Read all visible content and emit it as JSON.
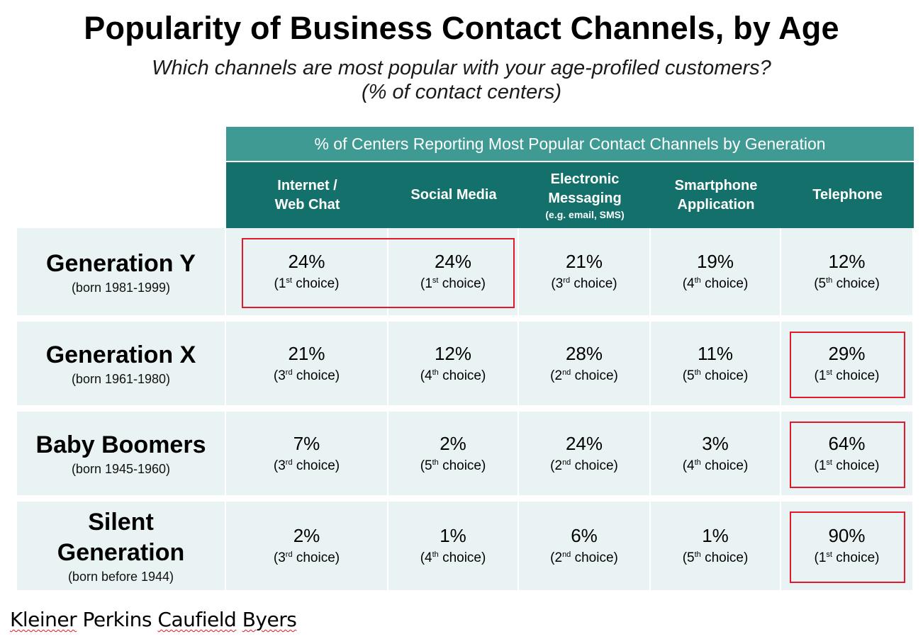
{
  "title": "Popularity of Business Contact Channels, by Age",
  "subtitle_line1": "Which channels are most popular with your age-profiled customers?",
  "subtitle_line2": "(% of contact centers)",
  "source": {
    "part1": "Kleiner",
    "part2": "Perkins",
    "part3": "Caufield",
    "part4": "Byers"
  },
  "chart_data": {
    "type": "table",
    "group_header": "% of Centers Reporting Most Popular Contact Channels by Generation",
    "columns": [
      {
        "line1": "Internet /",
        "line2": "Web Chat",
        "note": ""
      },
      {
        "line1": "Social Media",
        "line2": "",
        "note": ""
      },
      {
        "line1": "Electronic",
        "line2": "Messaging",
        "note": "(e.g. email, SMS)"
      },
      {
        "line1": "Smartphone",
        "line2": "Application",
        "note": ""
      },
      {
        "line1": "Telephone",
        "line2": "",
        "note": ""
      }
    ],
    "rows": [
      {
        "generation_line1": "Generation Y",
        "generation_line2": "",
        "born": "(born 1981-1999)",
        "values": [
          24,
          24,
          21,
          19,
          12
        ],
        "display": [
          "24%",
          "24%",
          "21%",
          "19%",
          "12%"
        ],
        "rank_num": [
          "1",
          "1",
          "3",
          "4",
          "5"
        ],
        "rank_sup": [
          "st",
          "st",
          "rd",
          "th",
          "th"
        ],
        "highlighted": [
          0,
          1
        ]
      },
      {
        "generation_line1": "Generation X",
        "generation_line2": "",
        "born": "(born 1961-1980)",
        "values": [
          21,
          12,
          28,
          11,
          29
        ],
        "display": [
          "21%",
          "12%",
          "28%",
          "11%",
          "29%"
        ],
        "rank_num": [
          "3",
          "4",
          "2",
          "5",
          "1"
        ],
        "rank_sup": [
          "rd",
          "th",
          "nd",
          "th",
          "st"
        ],
        "highlighted": [
          4
        ]
      },
      {
        "generation_line1": "Baby Boomers",
        "generation_line2": "",
        "born": "(born 1945-1960)",
        "values": [
          7,
          2,
          24,
          3,
          64
        ],
        "display": [
          "7%",
          "2%",
          "24%",
          "3%",
          "64%"
        ],
        "rank_num": [
          "3",
          "5",
          "2",
          "4",
          "1"
        ],
        "rank_sup": [
          "rd",
          "th",
          "nd",
          "th",
          "st"
        ],
        "highlighted": [
          4
        ]
      },
      {
        "generation_line1": "Silent",
        "generation_line2": "Generation",
        "born": "(born before 1944)",
        "values": [
          2,
          1,
          6,
          1,
          90
        ],
        "display": [
          "2%",
          "1%",
          "6%",
          "1%",
          "90%"
        ],
        "rank_num": [
          "3",
          "4",
          "2",
          "5",
          "1"
        ],
        "rank_sup": [
          "rd",
          "th",
          "nd",
          "th",
          "st"
        ],
        "highlighted": [
          4
        ]
      }
    ],
    "choice_word": "choice",
    "colors": {
      "group_header_bg": "#3f9a93",
      "column_header_bg": "#14706b",
      "row_bg": "#e9f3f3",
      "highlight": "#e3192b"
    }
  }
}
